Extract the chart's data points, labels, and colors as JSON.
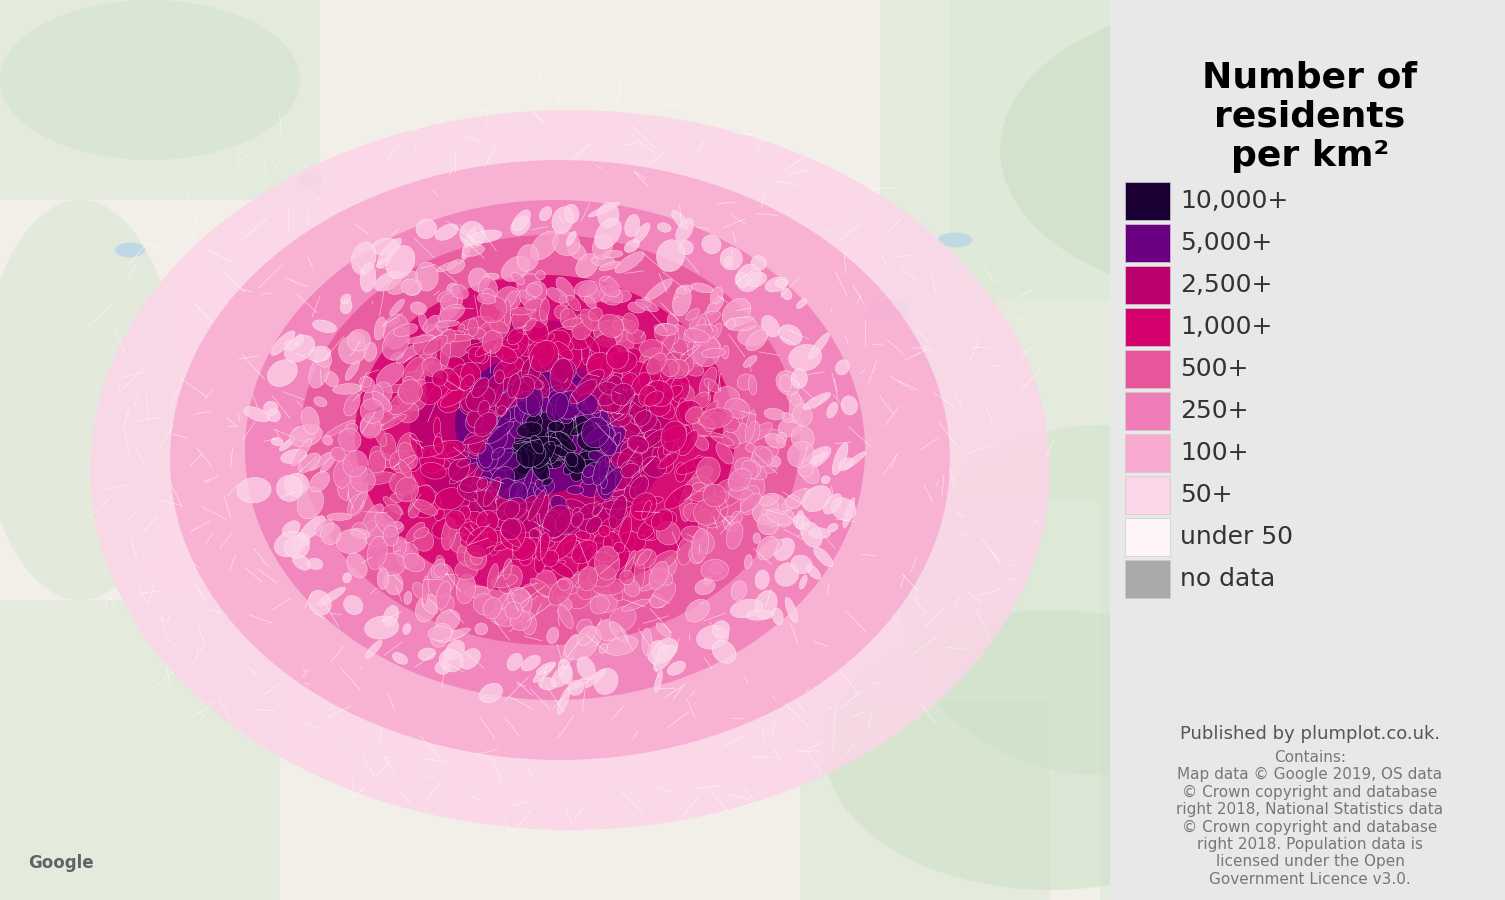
{
  "title": "Number of\nresidents\nper km²",
  "legend_labels": [
    "10,000+",
    "5,000+",
    "2,500+",
    "1,000+",
    "500+",
    "250+",
    "100+",
    "50+",
    "under 50",
    "no data"
  ],
  "legend_colors": [
    "#1a0033",
    "#6b0080",
    "#bb0070",
    "#d4006e",
    "#e8559a",
    "#f07db8",
    "#f8aad0",
    "#fcd5e8",
    "#fef4f8",
    "#aaaaaa"
  ],
  "published_text": "Published by plumplot.co.uk.",
  "contains_text": "Contains:\nMap data © Google 2019, OS data\n© Crown copyright and database\nright 2018, National Statistics data\n© Crown copyright and database\nright 2018. Population data is\nlicensed under the Open\nGovernment Licence v3.0.",
  "bg_color": "#e8e8e8",
  "map_road_color": "#ffffff",
  "map_land_color": "#f2efe9",
  "map_green_color": "#d8ead4",
  "right_panel_color": "#e8e8e8",
  "title_fontsize": 26,
  "legend_fontsize": 18,
  "published_fontsize": 13,
  "contains_fontsize": 11,
  "figsize": [
    15.05,
    9.0
  ],
  "dpi": 100
}
